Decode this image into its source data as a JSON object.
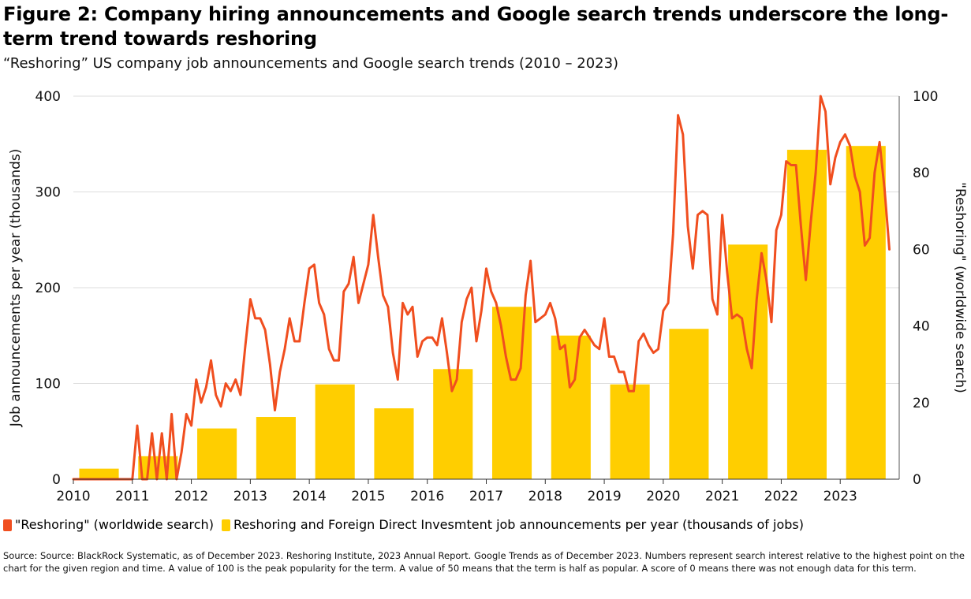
{
  "title": "Figure 2: Company hiring announcements and Google search trends underscore the long-term trend towards reshoring",
  "subtitle": "“Reshoring” US company job announcements and Google search trends (2010 – 2023)",
  "legend": {
    "line_label": "\"Reshoring\" (worldwide search)",
    "bar_label": "Reshoring and Foreign Direct Invesmtent job announcements per year (thousands of jobs)"
  },
  "source": "Source: Source: BlackRock Systematic, as of December 2023. Reshoring Institute, 2023 Annual Report. Google Trends as of December 2023. Numbers represent search interest relative to the highest point on the chart for the given region and time. A value of 100 is the peak popularity for the term. A value of 50 means that the term is half as popular. A score of 0 means there was not enough data for this term.",
  "colors": {
    "bar": "#FFCE00",
    "line": "#F04E1F",
    "grid": "#DDDDDD"
  },
  "chart_data": {
    "type": "bar",
    "title": "",
    "xlabel": "",
    "ylabel": "Job announcements per year (thousands)",
    "y2label": "\"Reshoring\" (worldwide search)",
    "xlim": [
      2010,
      2024
    ],
    "ylim": [
      0,
      400
    ],
    "y2lim": [
      0,
      100
    ],
    "x_ticks": [
      "2010",
      "2011",
      "2012",
      "2013",
      "2014",
      "2015",
      "2016",
      "2017",
      "2018",
      "2019",
      "2020",
      "2021",
      "2022",
      "2023"
    ],
    "y_ticks": [
      "0",
      "100",
      "200",
      "300",
      "400"
    ],
    "y2_ticks": [
      "0",
      "20",
      "40",
      "60",
      "80",
      "100"
    ],
    "grid": true,
    "legend_position": "bottom",
    "series": [
      {
        "name": "Reshoring and Foreign Direct Invesmtent job announcements per year (thousands of jobs)",
        "type": "bar",
        "axis": "left",
        "categories": [
          "2010",
          "2011",
          "2012",
          "2013",
          "2014",
          "2015",
          "2016",
          "2017",
          "2018",
          "2019",
          "2020",
          "2021",
          "2022",
          "2023"
        ],
        "values": [
          11,
          24,
          53,
          65,
          99,
          74,
          115,
          180,
          150,
          99,
          157,
          245,
          344,
          348
        ]
      },
      {
        "name": "\"Reshoring\" (worldwide search)",
        "type": "line",
        "axis": "right",
        "x_start": "2010-01",
        "frequency": "monthly",
        "values": [
          0,
          0,
          0,
          0,
          0,
          0,
          0,
          0,
          0,
          0,
          0,
          0,
          0,
          14,
          0,
          0,
          12,
          0,
          12,
          0,
          17,
          0,
          7,
          17,
          14,
          26,
          20,
          24,
          31,
          22,
          19,
          25,
          23,
          26,
          22,
          35,
          47,
          42,
          42,
          39,
          30,
          18,
          28,
          34,
          42,
          36,
          36,
          46,
          55,
          56,
          46,
          43,
          34,
          31,
          31,
          49,
          51,
          58,
          46,
          51,
          56,
          69,
          58,
          48,
          45,
          33,
          26,
          46,
          43,
          45,
          32,
          36,
          37,
          37,
          35,
          42,
          33,
          23,
          26,
          41,
          47,
          50,
          36,
          44,
          55,
          49,
          46,
          40,
          32,
          26,
          26,
          29,
          48,
          57,
          41,
          42,
          43,
          46,
          42,
          34,
          35,
          24,
          26,
          37,
          39,
          37,
          35,
          34,
          42,
          32,
          32,
          28,
          28,
          23,
          23,
          36,
          38,
          35,
          33,
          34,
          44,
          46,
          64,
          95,
          90,
          66,
          55,
          69,
          70,
          69,
          47,
          43,
          69,
          54,
          42,
          43,
          42,
          34,
          29,
          47,
          59,
          52,
          41,
          65,
          69,
          83,
          82,
          82,
          66,
          52,
          67,
          80,
          100,
          96,
          77,
          84,
          88,
          90,
          87,
          79,
          75,
          61,
          63,
          80,
          88,
          76,
          60
        ]
      }
    ]
  }
}
